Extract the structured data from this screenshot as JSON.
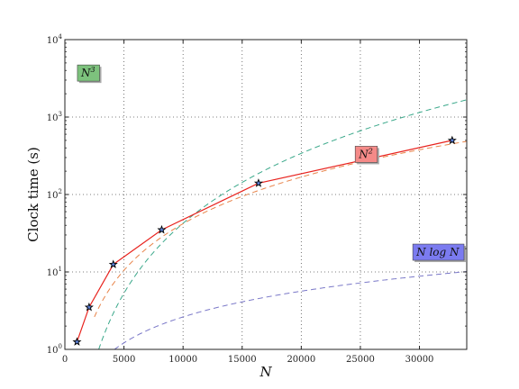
{
  "chart_data": {
    "type": "line",
    "xlabel": "N",
    "ylabel": "Clock time (s)",
    "xlim": [
      0,
      34000
    ],
    "ylim": [
      1,
      10000
    ],
    "yscale": "log",
    "grid": true,
    "x_ticks": [
      0,
      5000,
      10000,
      15000,
      20000,
      25000,
      30000
    ],
    "y_ticks": [
      {
        "value": 1,
        "base": "10",
        "exp": "0"
      },
      {
        "value": 10,
        "base": "10",
        "exp": "1"
      },
      {
        "value": 100,
        "base": "10",
        "exp": "2"
      },
      {
        "value": 1000,
        "base": "10",
        "exp": "3"
      },
      {
        "value": 10000,
        "base": "10",
        "exp": "4"
      }
    ],
    "measured": {
      "color": "#e8231e",
      "marker": "star",
      "x": [
        1024,
        2048,
        4096,
        8192,
        16384,
        32768
      ],
      "y": [
        1.25,
        3.5,
        12.5,
        35,
        140,
        500
      ]
    },
    "reference_curves": [
      {
        "id": "n3",
        "model": "cubic",
        "coef": 4.25e-11,
        "color": "#3aa88a",
        "x_start": 700,
        "x_end": 34000
      },
      {
        "id": "n2",
        "model": "quadratic",
        "coef": 4.2e-07,
        "color": "#e8844a",
        "x_start": 2500,
        "x_end": 34000
      },
      {
        "id": "nlogn",
        "model": "nlogn",
        "coef": 2.85e-05,
        "color": "#7a78c8",
        "x_start": 3500,
        "x_end": 34000
      }
    ],
    "annotations": [
      {
        "id": "n3",
        "text": "N",
        "sup": "3",
        "x": 2000,
        "y": 3700,
        "fill": "#7dc27d"
      },
      {
        "id": "n2",
        "text": "N",
        "sup": "2",
        "x": 25500,
        "y": 330,
        "fill": "#f58a88"
      },
      {
        "id": "nlogn",
        "text": "N log N",
        "sup": "",
        "x": 33500,
        "y": 18,
        "fill": "#7b7bf0"
      }
    ]
  }
}
